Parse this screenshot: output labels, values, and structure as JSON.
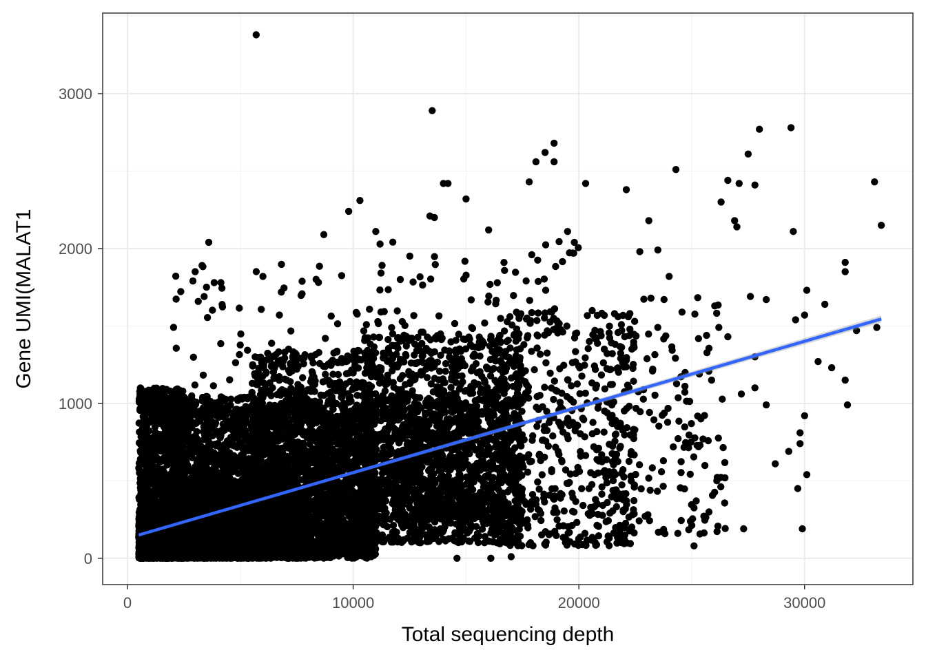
{
  "chart_data": {
    "type": "scatter",
    "xlabel": "Total sequencing depth",
    "ylabel": "Gene UMI(MALAT1",
    "xlim": [
      -1100,
      34800
    ],
    "ylim": [
      -170,
      3520
    ],
    "xticks": [
      0,
      10000,
      20000,
      30000
    ],
    "yticks": [
      0,
      1000,
      2000,
      3000
    ],
    "xtick_labels": [
      "0",
      "10000",
      "20000",
      "30000"
    ],
    "ytick_labels": [
      "0",
      "1000",
      "2000",
      "3000"
    ],
    "grid": true,
    "theme": "bw",
    "point_color": "#000000",
    "fit_line": {
      "method": "linear",
      "color": "#3366ff",
      "ribbon_color": "#999999",
      "points": [
        [
          500,
          150
        ],
        [
          33400,
          1545
        ]
      ]
    },
    "highlight_points": [
      [
        5700,
        3380
      ],
      [
        13500,
        2890
      ],
      [
        28000,
        2770
      ],
      [
        29400,
        2780
      ],
      [
        18900,
        2680
      ],
      [
        18500,
        2620
      ],
      [
        18100,
        2560
      ],
      [
        18900,
        2560
      ],
      [
        27500,
        2610
      ],
      [
        24300,
        2510
      ],
      [
        20300,
        2420
      ],
      [
        26600,
        2440
      ],
      [
        27100,
        2420
      ],
      [
        27800,
        2410
      ],
      [
        33100,
        2430
      ],
      [
        14000,
        2420
      ],
      [
        14200,
        2420
      ],
      [
        17800,
        2430
      ],
      [
        22100,
        2380
      ],
      [
        15000,
        2320
      ],
      [
        10300,
        2310
      ],
      [
        9800,
        2240
      ],
      [
        26300,
        2300
      ],
      [
        33400,
        2150
      ],
      [
        3600,
        2040
      ],
      [
        3000,
        1850
      ],
      [
        2900,
        1790
      ],
      [
        3500,
        1750
      ],
      [
        6000,
        1820
      ],
      [
        29500,
        2110
      ],
      [
        26900,
        2180
      ],
      [
        27000,
        2140
      ],
      [
        28300,
        1670
      ],
      [
        31800,
        1910
      ],
      [
        31800,
        1850
      ],
      [
        30100,
        1730
      ],
      [
        30900,
        1640
      ],
      [
        32300,
        1470
      ],
      [
        33200,
        1490
      ],
      [
        30000,
        1570
      ],
      [
        29600,
        1540
      ],
      [
        30600,
        1270
      ],
      [
        31200,
        1230
      ],
      [
        31800,
        1150
      ],
      [
        31900,
        990
      ],
      [
        29800,
        810
      ],
      [
        29800,
        740
      ],
      [
        30000,
        920
      ],
      [
        29900,
        190
      ],
      [
        29700,
        450
      ],
      [
        30100,
        540
      ],
      [
        29300,
        690
      ],
      [
        28700,
        610
      ],
      [
        28300,
        990
      ],
      [
        27800,
        1100
      ],
      [
        27200,
        1060
      ],
      [
        27800,
        1300
      ],
      [
        25100,
        80
      ],
      [
        25200,
        370
      ],
      [
        27300,
        190
      ],
      [
        26200,
        1490
      ],
      [
        23500,
        1990
      ],
      [
        23100,
        2180
      ],
      [
        24000,
        1820
      ],
      [
        22700,
        1980
      ],
      [
        19500,
        2110
      ],
      [
        19800,
        2040
      ],
      [
        16000,
        2120
      ],
      [
        13400,
        2210
      ],
      [
        13600,
        2200
      ],
      [
        11000,
        2110
      ],
      [
        8700,
        2090
      ],
      [
        10900,
        1290
      ],
      [
        16100,
        0
      ],
      [
        14600,
        0
      ],
      [
        17000,
        10
      ],
      [
        25500,
        770
      ],
      [
        24700,
        1110
      ],
      [
        26600,
        1430
      ],
      [
        27600,
        1690
      ]
    ],
    "cloud": [
      {
        "x": [
          500,
          2500
        ],
        "y": [
          0,
          350
        ],
        "n": 2400
      },
      {
        "x": [
          500,
          2500
        ],
        "y": [
          0,
          1100
        ],
        "n": 900
      },
      {
        "x": [
          2000,
          6000
        ],
        "y": [
          0,
          500
        ],
        "n": 1800
      },
      {
        "x": [
          2000,
          6000
        ],
        "y": [
          0,
          1050
        ],
        "n": 1300
      },
      {
        "x": [
          5500,
          11000
        ],
        "y": [
          0,
          1000
        ],
        "n": 1700
      },
      {
        "x": [
          5500,
          11000
        ],
        "y": [
          50,
          1350
        ],
        "n": 1100
      },
      {
        "x": [
          10500,
          17500
        ],
        "y": [
          100,
          1450
        ],
        "n": 1200
      },
      {
        "x": [
          10500,
          17500
        ],
        "y": [
          250,
          1050
        ],
        "n": 900
      },
      {
        "x": [
          16500,
          22500
        ],
        "y": [
          80,
          1600
        ],
        "n": 520
      },
      {
        "x": [
          21500,
          26500
        ],
        "y": [
          150,
          1700
        ],
        "n": 150
      },
      {
        "x": [
          2000,
          11000
        ],
        "y": [
          1000,
          1900
        ],
        "n": 70
      },
      {
        "x": [
          11000,
          20000
        ],
        "y": [
          1400,
          2050
        ],
        "n": 80
      },
      {
        "x": [
          500,
          9000
        ],
        "y": [
          0,
          60
        ],
        "n": 500
      }
    ]
  }
}
